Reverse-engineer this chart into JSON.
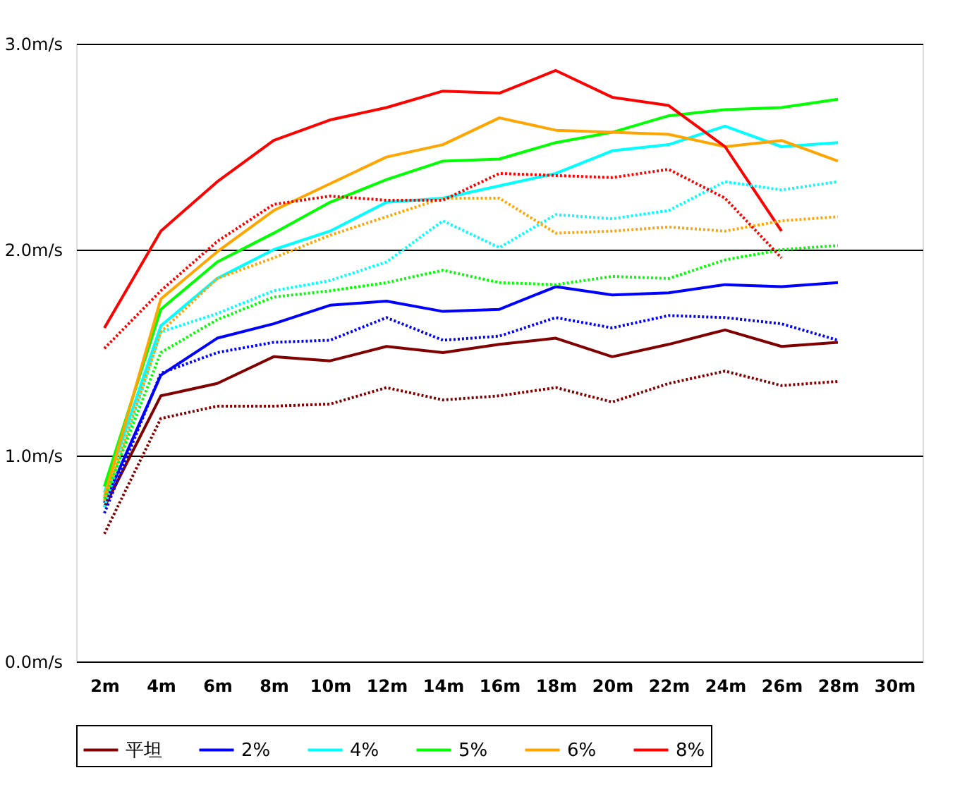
{
  "chart_data": {
    "type": "line",
    "categories": [
      "2m",
      "4m",
      "6m",
      "8m",
      "10m",
      "12m",
      "14m",
      "16m",
      "18m",
      "20m",
      "22m",
      "24m",
      "26m",
      "28m",
      "30m"
    ],
    "ylim": [
      0,
      3
    ],
    "yticks": [
      {
        "value": 0,
        "label": "0.0m/s"
      },
      {
        "value": 1,
        "label": "1.0m/s"
      },
      {
        "value": 2,
        "label": "2.0m/s"
      },
      {
        "value": 3,
        "label": "3.0m/s"
      }
    ],
    "grid": "y",
    "legend": "bottom",
    "marker": "none",
    "series": [
      {
        "name": "平坦",
        "color": "#800000",
        "line_style": "solid",
        "values": [
          0.75,
          1.29,
          1.35,
          1.48,
          1.46,
          1.53,
          1.5,
          1.54,
          1.57,
          1.48,
          1.54,
          1.61,
          1.53,
          1.55,
          null
        ]
      },
      {
        "name": "2%",
        "color": "#0000ff",
        "line_style": "solid",
        "values": [
          0.77,
          1.39,
          1.57,
          1.64,
          1.73,
          1.75,
          1.7,
          1.71,
          1.82,
          1.78,
          1.79,
          1.83,
          1.82,
          1.84,
          null
        ]
      },
      {
        "name": "4%",
        "color": "#00ffff",
        "line_style": "solid",
        "values": [
          0.82,
          1.63,
          1.86,
          2.0,
          2.09,
          2.23,
          2.25,
          2.31,
          2.37,
          2.48,
          2.51,
          2.6,
          2.5,
          2.52,
          null
        ]
      },
      {
        "name": "5%",
        "color": "#00ff00",
        "line_style": "solid",
        "values": [
          0.85,
          1.71,
          1.94,
          2.08,
          2.23,
          2.34,
          2.43,
          2.44,
          2.52,
          2.57,
          2.65,
          2.68,
          2.69,
          2.73,
          null
        ]
      },
      {
        "name": "6%",
        "color": "#ffa500",
        "line_style": "solid",
        "values": [
          0.8,
          1.76,
          1.99,
          2.19,
          2.32,
          2.45,
          2.51,
          2.64,
          2.58,
          2.57,
          2.56,
          2.5,
          2.53,
          2.43,
          null
        ]
      },
      {
        "name": "8%",
        "color": "#ff0000",
        "line_style": "solid",
        "values": [
          1.62,
          2.09,
          2.33,
          2.53,
          2.63,
          2.69,
          2.77,
          2.76,
          2.87,
          2.74,
          2.7,
          2.5,
          2.09,
          null,
          null
        ]
      },
      {
        "color": "#800000",
        "line_style": "dotted",
        "values": [
          0.62,
          1.18,
          1.24,
          1.24,
          1.25,
          1.33,
          1.27,
          1.29,
          1.33,
          1.26,
          1.35,
          1.41,
          1.34,
          1.36,
          null
        ]
      },
      {
        "color": "#0000ff",
        "line_style": "dotted",
        "values": [
          0.72,
          1.4,
          1.5,
          1.55,
          1.56,
          1.67,
          1.56,
          1.58,
          1.67,
          1.62,
          1.68,
          1.67,
          1.64,
          1.56,
          null
        ]
      },
      {
        "color": "#00ffff",
        "line_style": "dotted",
        "values": [
          0.75,
          1.6,
          1.69,
          1.8,
          1.85,
          1.94,
          2.14,
          2.01,
          2.17,
          2.15,
          2.19,
          2.33,
          2.29,
          2.33,
          null
        ]
      },
      {
        "color": "#00ff00",
        "line_style": "dotted",
        "values": [
          0.79,
          1.5,
          1.66,
          1.77,
          1.8,
          1.84,
          1.9,
          1.84,
          1.83,
          1.87,
          1.86,
          1.95,
          2.0,
          2.02,
          null
        ]
      },
      {
        "color": "#ffa500",
        "line_style": "dotted",
        "values": [
          0.78,
          1.6,
          1.86,
          1.96,
          2.07,
          2.16,
          2.25,
          2.25,
          2.08,
          2.09,
          2.11,
          2.09,
          2.14,
          2.16,
          null
        ]
      },
      {
        "color": "#ff0000",
        "line_style": "dotted",
        "values": [
          1.52,
          1.8,
          2.04,
          2.22,
          2.26,
          2.24,
          2.24,
          2.37,
          2.36,
          2.35,
          2.39,
          2.25,
          1.96,
          null,
          null
        ]
      }
    ]
  }
}
